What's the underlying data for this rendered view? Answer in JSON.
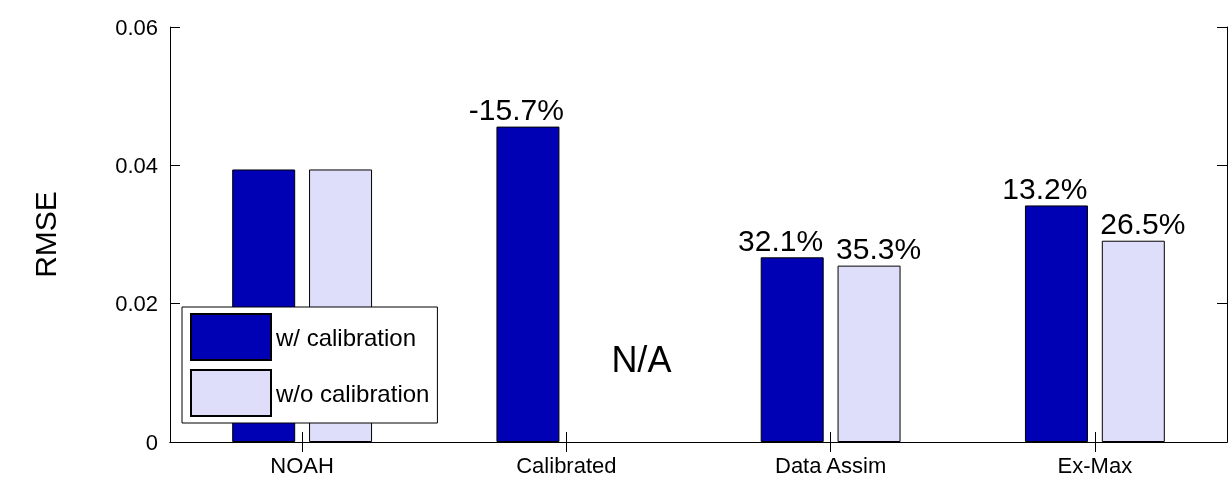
{
  "chart_data": {
    "type": "bar",
    "ylabel": "RMSE",
    "categories": [
      "NOAH",
      "Calibrated",
      "Data Assim",
      "Ex-Max"
    ],
    "series": [
      {
        "name": "w/ calibration",
        "color": "#0000b4",
        "values": [
          0.0394,
          0.0456,
          0.0267,
          0.0342
        ]
      },
      {
        "name": "w/o calibration",
        "color": "#dedefa",
        "values": [
          0.0394,
          null,
          0.0255,
          0.0291
        ]
      }
    ],
    "annotations": [
      "-15.7%",
      "32.1%",
      "13.2%",
      "35.3%",
      "26.5%",
      "N/A"
    ],
    "ylim": [
      0,
      0.06
    ],
    "yticks": [
      0,
      0.02,
      0.04,
      0.06
    ],
    "grid": false,
    "legend": "bottom left"
  }
}
